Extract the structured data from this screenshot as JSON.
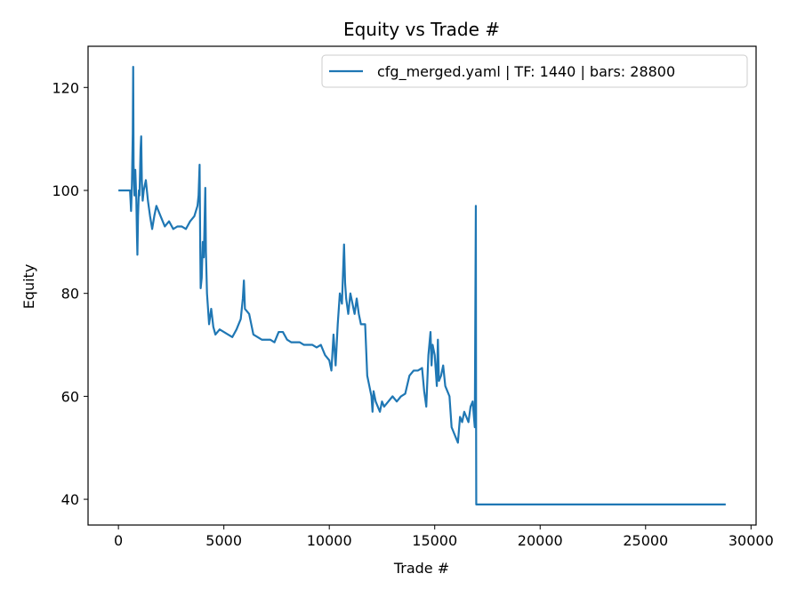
{
  "chart_data": {
    "type": "line",
    "title": "Equity vs Trade #",
    "xlabel": "Trade #",
    "ylabel": "Equity",
    "xlim": [
      -1440,
      30240
    ],
    "ylim": [
      35,
      128
    ],
    "xticks": [
      0,
      5000,
      10000,
      15000,
      20000,
      25000,
      30000
    ],
    "yticks": [
      40,
      60,
      80,
      100,
      120
    ],
    "grid": false,
    "legend_position": "top-right",
    "series": [
      {
        "name": "cfg_merged.yaml | TF: 1440 | bars: 28800",
        "color": "#1f77b4",
        "points": [
          [
            0,
            100
          ],
          [
            550,
            100
          ],
          [
            600,
            96
          ],
          [
            640,
            101
          ],
          [
            680,
            111
          ],
          [
            700,
            124
          ],
          [
            720,
            105
          ],
          [
            760,
            99
          ],
          [
            800,
            104
          ],
          [
            850,
            98
          ],
          [
            880,
            91
          ],
          [
            900,
            87.5
          ],
          [
            930,
            95
          ],
          [
            970,
            100
          ],
          [
            1000,
            99
          ],
          [
            1050,
            108
          ],
          [
            1080,
            110.5
          ],
          [
            1110,
            102
          ],
          [
            1150,
            98
          ],
          [
            1200,
            100
          ],
          [
            1300,
            102
          ],
          [
            1400,
            98
          ],
          [
            1500,
            95
          ],
          [
            1600,
            92.5
          ],
          [
            1700,
            95
          ],
          [
            1800,
            97
          ],
          [
            2000,
            95
          ],
          [
            2200,
            93
          ],
          [
            2400,
            94
          ],
          [
            2600,
            92.5
          ],
          [
            2800,
            93
          ],
          [
            3000,
            93
          ],
          [
            3200,
            92.5
          ],
          [
            3400,
            94
          ],
          [
            3600,
            95
          ],
          [
            3750,
            97
          ],
          [
            3800,
            99
          ],
          [
            3850,
            105
          ],
          [
            3880,
            89
          ],
          [
            3900,
            81
          ],
          [
            3950,
            83
          ],
          [
            4000,
            90
          ],
          [
            4050,
            87
          ],
          [
            4120,
            100.5
          ],
          [
            4150,
            88
          ],
          [
            4200,
            80
          ],
          [
            4300,
            74
          ],
          [
            4400,
            77
          ],
          [
            4500,
            73.5
          ],
          [
            4600,
            72
          ],
          [
            4800,
            73
          ],
          [
            5000,
            72.5
          ],
          [
            5200,
            72
          ],
          [
            5400,
            71.5
          ],
          [
            5600,
            73
          ],
          [
            5800,
            75
          ],
          [
            5900,
            79
          ],
          [
            5950,
            82.5
          ],
          [
            6000,
            77
          ],
          [
            6200,
            76
          ],
          [
            6400,
            72
          ],
          [
            6600,
            71.5
          ],
          [
            6800,
            71
          ],
          [
            7000,
            71
          ],
          [
            7200,
            71
          ],
          [
            7400,
            70.5
          ],
          [
            7600,
            72.5
          ],
          [
            7800,
            72.5
          ],
          [
            8000,
            71
          ],
          [
            8200,
            70.5
          ],
          [
            8400,
            70.5
          ],
          [
            8600,
            70.5
          ],
          [
            8800,
            70
          ],
          [
            9000,
            70
          ],
          [
            9200,
            70
          ],
          [
            9400,
            69.5
          ],
          [
            9600,
            70
          ],
          [
            9800,
            68
          ],
          [
            10000,
            67
          ],
          [
            10100,
            65
          ],
          [
            10200,
            72
          ],
          [
            10300,
            66
          ],
          [
            10400,
            74
          ],
          [
            10500,
            80
          ],
          [
            10600,
            78
          ],
          [
            10700,
            89.5
          ],
          [
            10750,
            82
          ],
          [
            10800,
            79
          ],
          [
            10900,
            76
          ],
          [
            11000,
            80
          ],
          [
            11100,
            78
          ],
          [
            11200,
            76
          ],
          [
            11300,
            79
          ],
          [
            11400,
            76
          ],
          [
            11500,
            74
          ],
          [
            11700,
            74
          ],
          [
            11800,
            64
          ],
          [
            11900,
            62
          ],
          [
            12000,
            60
          ],
          [
            12050,
            57
          ],
          [
            12100,
            61
          ],
          [
            12200,
            59
          ],
          [
            12300,
            58
          ],
          [
            12400,
            57
          ],
          [
            12500,
            59
          ],
          [
            12600,
            58
          ],
          [
            12800,
            59
          ],
          [
            13000,
            60
          ],
          [
            13200,
            59
          ],
          [
            13400,
            60
          ],
          [
            13600,
            60.5
          ],
          [
            13800,
            64
          ],
          [
            14000,
            65
          ],
          [
            14200,
            65
          ],
          [
            14400,
            65.5
          ],
          [
            14500,
            61
          ],
          [
            14600,
            58
          ],
          [
            14700,
            68
          ],
          [
            14800,
            72.5
          ],
          [
            14850,
            66
          ],
          [
            14900,
            70
          ],
          [
            15000,
            68
          ],
          [
            15100,
            62
          ],
          [
            15150,
            71
          ],
          [
            15200,
            63
          ],
          [
            15300,
            64
          ],
          [
            15400,
            66
          ],
          [
            15500,
            62
          ],
          [
            15600,
            61
          ],
          [
            15700,
            60
          ],
          [
            15800,
            54
          ],
          [
            15900,
            53
          ],
          [
            16000,
            52
          ],
          [
            16100,
            51
          ],
          [
            16200,
            56
          ],
          [
            16300,
            55
          ],
          [
            16400,
            57
          ],
          [
            16500,
            56
          ],
          [
            16600,
            55
          ],
          [
            16700,
            58
          ],
          [
            16800,
            59
          ],
          [
            16900,
            54
          ],
          [
            16950,
            97
          ],
          [
            16960,
            60
          ],
          [
            16970,
            39
          ],
          [
            28800,
            39
          ]
        ]
      }
    ]
  }
}
